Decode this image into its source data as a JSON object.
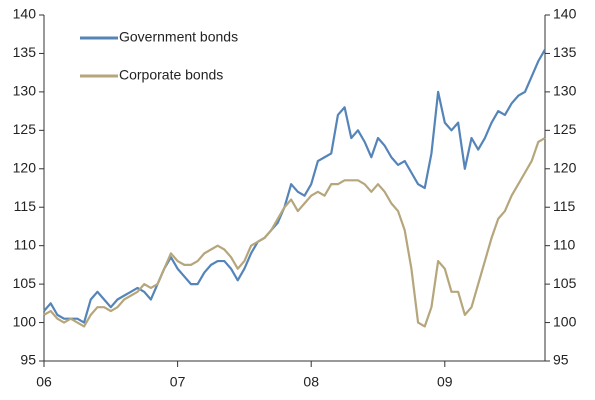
{
  "chart_data": {
    "type": "line",
    "x": [
      6.0,
      6.05,
      6.1,
      6.15,
      6.2,
      6.25,
      6.3,
      6.35,
      6.4,
      6.45,
      6.5,
      6.55,
      6.6,
      6.65,
      6.7,
      6.75,
      6.8,
      6.85,
      6.9,
      6.95,
      7.0,
      7.05,
      7.1,
      7.15,
      7.2,
      7.25,
      7.3,
      7.35,
      7.4,
      7.45,
      7.5,
      7.55,
      7.6,
      7.65,
      7.7,
      7.75,
      7.8,
      7.85,
      7.9,
      7.95,
      8.0,
      8.05,
      8.1,
      8.15,
      8.2,
      8.25,
      8.3,
      8.35,
      8.4,
      8.45,
      8.5,
      8.55,
      8.6,
      8.65,
      8.7,
      8.75,
      8.8,
      8.85,
      8.9,
      8.95,
      9.0,
      9.05,
      9.1,
      9.15,
      9.2,
      9.25,
      9.3,
      9.35,
      9.4,
      9.45,
      9.5,
      9.55,
      9.6,
      9.65,
      9.7,
      9.75
    ],
    "series": [
      {
        "name": "Government bonds",
        "color": "#5584b9",
        "values": [
          101.5,
          102.5,
          101,
          100.5,
          100.5,
          100.5,
          100,
          103,
          104,
          103,
          102,
          103,
          103.5,
          104,
          104.5,
          104,
          103,
          105,
          107,
          108.5,
          107,
          106,
          105,
          105,
          106.5,
          107.5,
          108,
          108,
          107,
          105.5,
          107,
          109,
          110.5,
          111,
          112,
          113,
          115,
          118,
          117,
          116.5,
          118,
          121,
          121.5,
          122,
          127,
          128,
          124,
          125,
          123.5,
          121.5,
          124,
          123,
          121.5,
          120.5,
          121,
          119.5,
          118,
          117.5,
          122,
          130,
          126,
          125,
          126,
          120,
          124,
          122.5,
          124,
          126,
          127.5,
          127,
          128.5,
          129.5,
          130,
          132,
          134,
          135.5
        ]
      },
      {
        "name": "Corporate bonds",
        "color": "#b6a67c",
        "values": [
          101,
          101.5,
          100.5,
          100,
          100.5,
          100,
          99.5,
          101,
          102,
          102,
          101.5,
          102,
          103,
          103.5,
          104,
          105,
          104.5,
          105,
          107,
          109,
          108,
          107.5,
          107.5,
          108,
          109,
          109.5,
          110,
          109.5,
          108.5,
          107,
          108,
          110,
          110.5,
          111,
          112,
          113.5,
          115,
          116,
          114.5,
          115.5,
          116.5,
          117,
          116.5,
          118,
          118,
          118.5,
          118.5,
          118.5,
          118,
          117,
          118,
          117,
          115.5,
          114.5,
          112,
          107,
          100,
          99.5,
          102,
          108,
          107,
          104,
          104,
          101,
          102,
          105,
          108,
          111,
          113.5,
          114.5,
          116.5,
          118,
          119.5,
          121,
          123.5,
          124
        ]
      }
    ],
    "xlim": [
      6,
      9.75
    ],
    "xticks": [
      {
        "value": 6,
        "label": "06"
      },
      {
        "value": 7,
        "label": "07"
      },
      {
        "value": 8,
        "label": "08"
      },
      {
        "value": 9,
        "label": "09"
      }
    ],
    "ylim": [
      95,
      140
    ],
    "yticks": [
      95,
      100,
      105,
      110,
      115,
      120,
      125,
      130,
      135,
      140
    ],
    "y2lim": [
      95,
      140
    ],
    "y2ticks": [
      95,
      100,
      105,
      110,
      115,
      120,
      125,
      130,
      135,
      140
    ],
    "legend": "top-left"
  }
}
